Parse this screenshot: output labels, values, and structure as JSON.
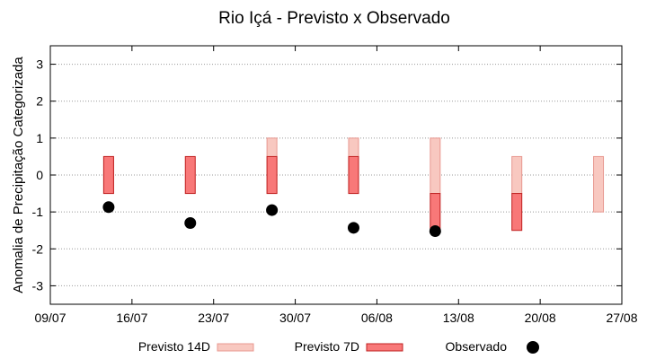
{
  "chart_data": {
    "type": "floating-bar",
    "title": "Rio Içá - Previsto x Observado",
    "xlabel": "",
    "ylabel": "Anomalia de Precipitação Categorizada",
    "ylim": [
      -3.5,
      3.5
    ],
    "yticks": [
      3,
      2,
      1,
      0,
      -1,
      -2,
      -3
    ],
    "xticks": [
      "09/07",
      "16/07",
      "23/07",
      "30/07",
      "06/08",
      "13/08",
      "20/08",
      "27/08"
    ],
    "grid": true,
    "legend_position": "bottom",
    "series": [
      {
        "name": "Previsto 14D",
        "fill": "#f8c8c0",
        "stroke": "#e89890",
        "bars": [
          {
            "x": "14/07",
            "low": -0.5,
            "high": 0.5
          },
          {
            "x": "28/07",
            "low": -0.5,
            "high": 1.0
          },
          {
            "x": "04/08",
            "low": -0.5,
            "high": 1.0
          },
          {
            "x": "11/08",
            "low": -0.5,
            "high": 1.0
          },
          {
            "x": "18/08",
            "low": -0.5,
            "high": 0.5
          },
          {
            "x": "25/08",
            "low": -1.0,
            "high": 0.5
          }
        ]
      },
      {
        "name": "Previsto 7D",
        "fill": "#f87878",
        "stroke": "#c02020",
        "bars": [
          {
            "x": "14/07",
            "low": -0.5,
            "high": 0.5
          },
          {
            "x": "21/07",
            "low": -0.5,
            "high": 0.5
          },
          {
            "x": "28/07",
            "low": -0.5,
            "high": 0.5
          },
          {
            "x": "04/08",
            "low": -0.5,
            "high": 0.5
          },
          {
            "x": "11/08",
            "low": -1.5,
            "high": -0.5
          },
          {
            "x": "18/08",
            "low": -1.5,
            "high": -0.5
          }
        ]
      },
      {
        "name": "Observado",
        "color": "#000000",
        "points": [
          {
            "x": "14/07",
            "y": -0.87
          },
          {
            "x": "21/07",
            "y": -1.3
          },
          {
            "x": "28/07",
            "y": -0.95
          },
          {
            "x": "04/08",
            "y": -1.43
          },
          {
            "x": "11/08",
            "y": -1.52
          }
        ]
      }
    ]
  }
}
